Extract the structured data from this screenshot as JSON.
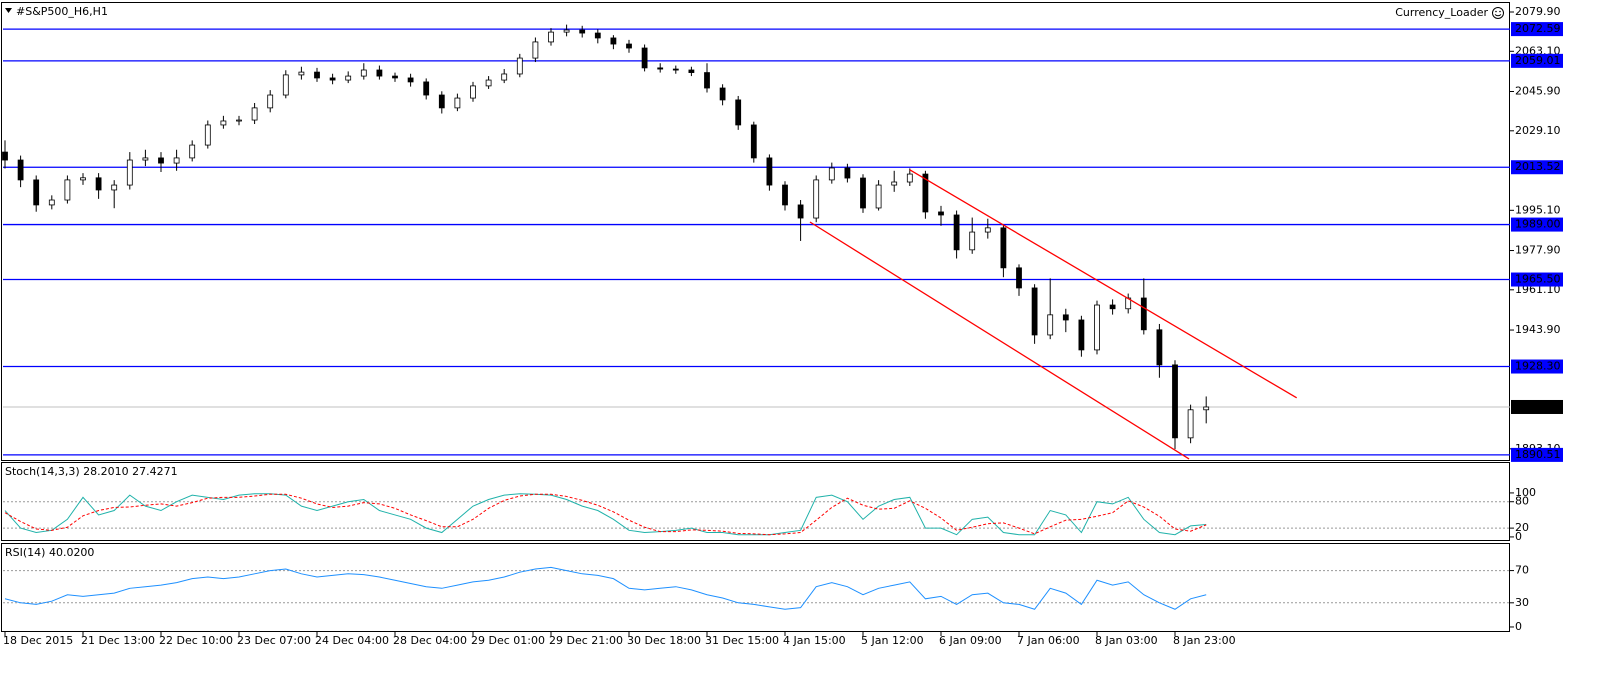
{
  "chart_data": {
    "type": "candlestick",
    "title": "#S&P500_H6,H1",
    "annotation": "Currency_Loader",
    "categories": [
      "18 Dec 2015",
      null,
      null,
      null,
      null,
      "21 Dec 13:00",
      null,
      null,
      null,
      null,
      "22 Dec 10:00",
      null,
      null,
      null,
      null,
      "23 Dec 07:00",
      null,
      null,
      null,
      null,
      "24 Dec 04:00",
      null,
      null,
      null,
      null,
      "28 Dec 04:00",
      null,
      null,
      null,
      null,
      "29 Dec 01:00",
      null,
      null,
      null,
      null,
      "29 Dec 21:00",
      null,
      null,
      null,
      null,
      "30 Dec 18:00",
      null,
      null,
      null,
      null,
      "31 Dec 15:00",
      null,
      null,
      null,
      null,
      "4 Jan 15:00",
      null,
      null,
      null,
      null,
      "5 Jan 12:00",
      null,
      null,
      null,
      null,
      "6 Jan 09:00",
      null,
      null,
      null,
      null,
      "7 Jan 06:00",
      null,
      null,
      null,
      null,
      "8 Jan 03:00",
      null,
      null,
      null,
      null,
      "8 Jan 23:00",
      null,
      null
    ],
    "open": [
      2020.0,
      2016.6,
      2008.1,
      1997.4,
      1999.5,
      2008.1,
      2009.0,
      2003.8,
      2005.9,
      2016.6,
      2017.5,
      2015.3,
      2017.5,
      2023.0,
      2031.6,
      2033.3,
      2033.7,
      2038.9,
      2044.4,
      2053.0,
      2054.2,
      2051.7,
      2050.8,
      2052.5,
      2055.1,
      2052.5,
      2051.7,
      2050.0,
      2044.4,
      2038.9,
      2043.1,
      2048.3,
      2050.8,
      2053.4,
      2060.2,
      2067.1,
      2071.3,
      2072.2,
      2070.9,
      2068.8,
      2066.2,
      2064.5,
      2056.0,
      2055.5,
      2055.1,
      2054.0,
      2047.4,
      2042.3,
      2031.6,
      2017.5,
      2005.9,
      1997.4,
      1991.8,
      2008.1,
      2013.2,
      2008.9,
      1996.1,
      2005.9,
      2007.2,
      2010.6,
      1994.4,
      1993.1,
      1978.2,
      1985.8,
      1987.6,
      1970.5,
      1961.9,
      1941.8,
      1950.4,
      1948.2,
      1935.4,
      1954.6,
      1953.0,
      1957.6,
      1944.0,
      1929.0,
      1897.8,
      1909.8
    ],
    "high": [
      2025.0,
      2018.5,
      2010.0,
      2001.5,
      2010.0,
      2011.0,
      2011.0,
      2008.0,
      2020.0,
      2021.0,
      2020.0,
      2021.0,
      2025.0,
      2033.5,
      2035.5,
      2035.5,
      2041.0,
      2046.5,
      2055.0,
      2056.5,
      2056.0,
      2053.5,
      2054.5,
      2058.0,
      2057.0,
      2054.0,
      2053.5,
      2051.5,
      2046.0,
      2045.0,
      2050.0,
      2052.5,
      2055.5,
      2062.0,
      2069.0,
      2073.0,
      2074.5,
      2074.0,
      2072.5,
      2070.0,
      2068.0,
      2066.0,
      2058.0,
      2057.0,
      2056.5,
      2058.0,
      2049.0,
      2044.0,
      2033.0,
      2019.0,
      2007.5,
      1999.5,
      2010.0,
      2015.5,
      2015.0,
      2010.5,
      2008.0,
      2012.0,
      2013.0,
      2012.0,
      1997.0,
      1995.0,
      1992.0,
      1991.5,
      1989.0,
      1972.0,
      1963.5,
      1966.0,
      1953.0,
      1950.0,
      1956.5,
      1957.0,
      1959.5,
      1966.0,
      1946.5,
      1931.0,
      1912.0,
      1915.5
    ],
    "low": [
      2013.0,
      2005.0,
      1994.5,
      1995.5,
      1998.0,
      2006.0,
      2000.0,
      1996.0,
      2004.0,
      2014.0,
      2011.5,
      2012.0,
      2016.0,
      2021.5,
      2030.0,
      2031.5,
      2032.0,
      2037.0,
      2043.0,
      2051.0,
      2050.0,
      2049.0,
      2049.5,
      2051.0,
      2051.0,
      2050.0,
      2048.0,
      2042.5,
      2036.5,
      2037.5,
      2041.5,
      2047.0,
      2049.5,
      2052.0,
      2058.5,
      2065.5,
      2069.5,
      2069.0,
      2066.5,
      2064.0,
      2062.5,
      2054.5,
      2054.0,
      2053.5,
      2052.5,
      2045.5,
      2040.0,
      2029.5,
      2015.5,
      2003.5,
      1995.0,
      1982.0,
      1990.0,
      2006.5,
      2007.0,
      1994.0,
      1995.0,
      2003.0,
      2005.5,
      1991.5,
      1988.5,
      1974.5,
      1976.5,
      1983.0,
      1966.5,
      1958.5,
      1938.0,
      1940.0,
      1943.0,
      1932.5,
      1933.5,
      1950.5,
      1951.0,
      1942.0,
      1923.5,
      1893.0,
      1895.5,
      1904.0
    ],
    "close": [
      2016.6,
      2008.1,
      1997.4,
      1999.5,
      2008.1,
      2009.0,
      2003.8,
      2005.9,
      2016.6,
      2017.5,
      2015.3,
      2017.5,
      2023.0,
      2031.6,
      2033.3,
      2033.7,
      2038.9,
      2044.4,
      2053.0,
      2054.2,
      2051.7,
      2050.8,
      2052.5,
      2055.1,
      2052.5,
      2051.7,
      2050.0,
      2044.4,
      2038.9,
      2043.1,
      2048.3,
      2050.8,
      2053.4,
      2060.2,
      2067.1,
      2071.3,
      2072.2,
      2070.9,
      2068.8,
      2066.2,
      2064.5,
      2056.0,
      2055.5,
      2055.1,
      2054.0,
      2047.4,
      2042.3,
      2031.6,
      2017.5,
      2005.9,
      1997.4,
      1991.8,
      2008.1,
      2013.2,
      2008.9,
      1996.1,
      2005.9,
      2007.2,
      2010.6,
      1994.4,
      1993.1,
      1978.2,
      1985.8,
      1987.6,
      1970.5,
      1961.9,
      1941.8,
      1950.4,
      1948.2,
      1935.4,
      1954.6,
      1953.0,
      1957.6,
      1944.0,
      1929.0,
      1897.8,
      1909.8,
      1911.0
    ],
    "ylim": [
      1887.9,
      2083.75
    ],
    "yticks": [
      {
        "value": 2079.9,
        "label": "2079.90"
      },
      {
        "value": 2063.1,
        "label": "2063.10"
      },
      {
        "value": 2045.9,
        "label": "2045.90"
      },
      {
        "value": 2029.1,
        "label": "2029.10"
      },
      {
        "value": 1995.1,
        "label": "1995.10"
      },
      {
        "value": 1977.9,
        "label": "1977.90"
      },
      {
        "value": 1961.1,
        "label": "1961.10"
      },
      {
        "value": 1943.9,
        "label": "1943.90"
      },
      {
        "value": 1893.1,
        "label": "1893.10"
      }
    ],
    "levels": [
      2072.59,
      2059.01,
      {
        "value": 2013.52,
        "label": "2013.52"
      },
      {
        "value": 1989,
        "label": "1989.00"
      },
      {
        "value": 1965.5,
        "label": "1965.50"
      },
      {
        "value": 1928.3,
        "label": "1928.30"
      },
      1890.51
    ],
    "level_color": "#0000ff",
    "price_line": {
      "value": 1911,
      "label": "1911.00"
    },
    "trendlines": [
      {
        "x": [
          58,
          82.8
        ],
        "y": [
          2012.4,
          1914.9
        ]
      },
      {
        "x": [
          51.6,
          75.9
        ],
        "y": [
          1990.1,
          1888.8
        ]
      }
    ],
    "trendline_color": "#ff0000",
    "bull_color": "#ffffff",
    "bear_color": "#000000",
    "panels": [
      {
        "type": "line",
        "title": "Stoch(14,3,3) 28.2010 27.4271",
        "ylim": [
          -7,
          168
        ],
        "yticks": [
          0,
          20,
          80,
          100
        ],
        "levels": [
          20,
          80
        ],
        "series": [
          {
            "color": "#20b2aa",
            "values": [
              60,
              20,
              10,
              15,
              40,
              90,
              50,
              60,
              95,
              70,
              60,
              80,
              95,
              90,
              85,
              95,
              98,
              98,
              95,
              70,
              60,
              70,
              80,
              85,
              60,
              50,
              40,
              20,
              10,
              40,
              70,
              85,
              95,
              98,
              97,
              95,
              85,
              70,
              60,
              40,
              15,
              10,
              12,
              15,
              20,
              10,
              10,
              5,
              5,
              5,
              10,
              15,
              90,
              95,
              80,
              40,
              70,
              85,
              90,
              20,
              20,
              5,
              40,
              45,
              10,
              5,
              5,
              60,
              50,
              10,
              80,
              75,
              90,
              40,
              10,
              5,
              25,
              28.201
            ]
          },
          {
            "color": "#ff0000",
            "dashed": true,
            "values": [
              55,
              35,
              18,
              15,
              22,
              48,
              60,
              67,
              68,
              72,
              75,
              70,
              78,
              88,
              90,
              90,
              93,
              97,
              97,
              88,
              75,
              67,
              70,
              78,
              75,
              65,
              50,
              37,
              23,
              23,
              40,
              65,
              83,
              93,
              97,
              97,
              92,
              83,
              72,
              57,
              38,
              22,
              12,
              12,
              16,
              15,
              13,
              8,
              7,
              5,
              7,
              10,
              38,
              67,
              88,
              72,
              63,
              65,
              82,
              65,
              43,
              15,
              22,
              30,
              32,
              20,
              7,
              23,
              38,
              40,
              47,
              55,
              82,
              68,
              47,
              18,
              13,
              27.4271
            ]
          }
        ]
      },
      {
        "type": "line",
        "title": "RSI(14) 40.0200",
        "ylim": [
          -5,
          103
        ],
        "yticks": [
          0,
          30,
          70
        ],
        "levels": [
          30,
          70
        ],
        "series": [
          {
            "color": "#1e90ff",
            "values": [
              35,
              30,
              28,
              32,
              40,
              38,
              40,
              42,
              48,
              50,
              52,
              55,
              60,
              62,
              60,
              62,
              66,
              70,
              72,
              66,
              62,
              64,
              66,
              65,
              62,
              58,
              54,
              50,
              48,
              52,
              56,
              58,
              62,
              68,
              72,
              74,
              70,
              66,
              64,
              60,
              48,
              46,
              48,
              50,
              46,
              40,
              36,
              30,
              28,
              25,
              22,
              24,
              50,
              55,
              50,
              40,
              48,
              52,
              56,
              35,
              38,
              28,
              40,
              42,
              30,
              28,
              22,
              48,
              42,
              28,
              58,
              52,
              56,
              40,
              30,
              22,
              35,
              40.02
            ]
          }
        ]
      }
    ]
  }
}
